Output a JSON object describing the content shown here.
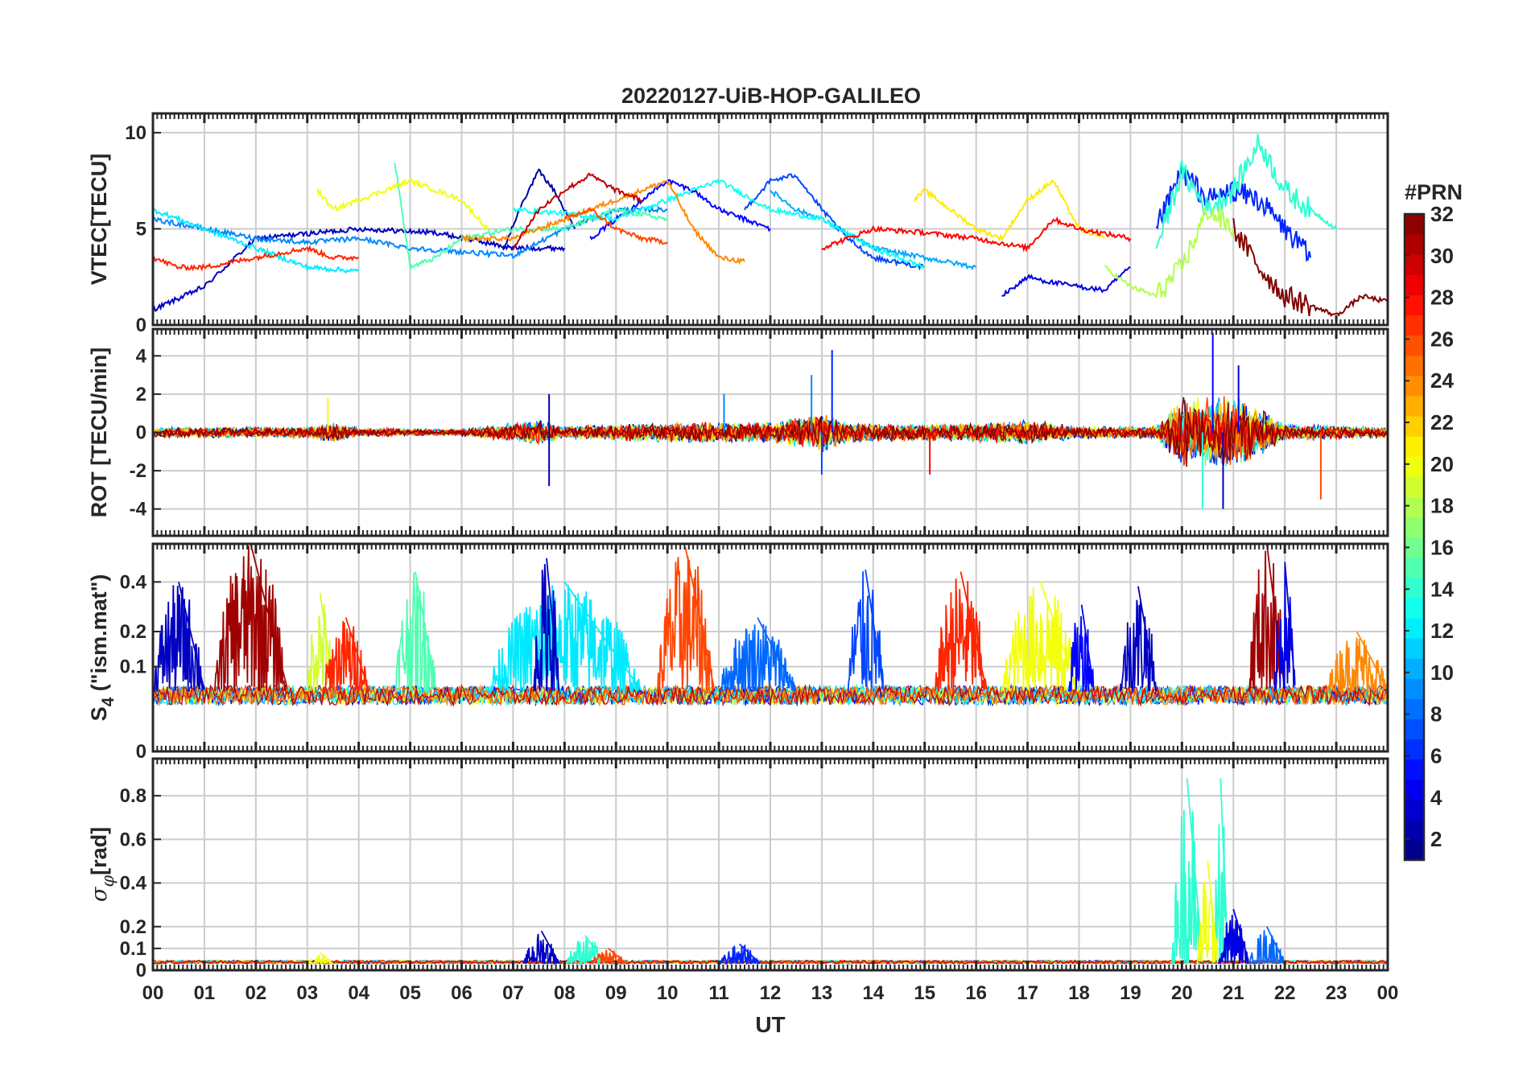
{
  "figure": {
    "title": "20220127-UiB-HOP-GALILEO",
    "xlabel": "UT",
    "colorbar": {
      "label": "#PRN",
      "range": [
        1,
        32
      ],
      "ticks": [
        "2",
        "4",
        "6",
        "8",
        "10",
        "12",
        "14",
        "16",
        "18",
        "20",
        "22",
        "24",
        "26",
        "28",
        "30",
        "32"
      ],
      "colormap": "jet"
    },
    "colors": {
      "axes": "#262626",
      "grid": "#cccccc",
      "background": "#ffffff"
    }
  },
  "chart_data": [
    {
      "type": "line",
      "panel": "vtec",
      "ylabel": "VTEC[TECU]",
      "xlim": [
        0,
        24
      ],
      "ylim": [
        0,
        11
      ],
      "yticks": [
        "0",
        "5",
        "10"
      ],
      "xtick_labels": [
        "00",
        "01",
        "02",
        "03",
        "04",
        "05",
        "06",
        "07",
        "08",
        "09",
        "10",
        "11",
        "12",
        "13",
        "14",
        "15",
        "16",
        "17",
        "18",
        "19",
        "20",
        "21",
        "22",
        "23",
        "00"
      ],
      "grid": true,
      "series": [
        {
          "prn": 2,
          "points": [
            [
              6.8,
              3.8
            ],
            [
              7.2,
              6.5
            ],
            [
              7.5,
              8.0
            ],
            [
              7.8,
              7.0
            ],
            [
              8.2,
              5.0
            ]
          ]
        },
        {
          "prn": 3,
          "points": [
            [
              0.0,
              0.8
            ],
            [
              0.6,
              1.5
            ],
            [
              1.0,
              2.0
            ],
            [
              2.0,
              4.5
            ],
            [
              4.0,
              5.0
            ],
            [
              5.5,
              4.8
            ],
            [
              7.0,
              4.0
            ],
            [
              8.0,
              4.0
            ]
          ]
        },
        {
          "prn": 5,
          "points": [
            [
              8.5,
              4.5
            ],
            [
              9.0,
              5.5
            ],
            [
              9.5,
              6.5
            ],
            [
              10.0,
              7.5
            ],
            [
              10.5,
              7.0
            ],
            [
              11.0,
              6.0
            ],
            [
              12.0,
              5.0
            ]
          ]
        },
        {
          "prn": 4,
          "points": [
            [
              16.5,
              1.5
            ],
            [
              17.0,
              2.5
            ],
            [
              17.5,
              2.2
            ],
            [
              18.5,
              1.8
            ],
            [
              19.0,
              3.0
            ]
          ]
        },
        {
          "prn": 6,
          "points": [
            [
              19.5,
              5.0
            ],
            [
              20.0,
              8.0
            ],
            [
              20.5,
              6.5
            ],
            [
              21.0,
              7.0
            ],
            [
              21.5,
              6.5
            ],
            [
              22.0,
              5.0
            ],
            [
              22.5,
              3.5
            ]
          ]
        },
        {
          "prn": 7,
          "points": [
            [
              11.5,
              6.0
            ],
            [
              12.0,
              7.5
            ],
            [
              12.5,
              7.8
            ],
            [
              13.0,
              6.0
            ],
            [
              13.5,
              4.5
            ],
            [
              14.0,
              3.5
            ],
            [
              15.0,
              3.0
            ]
          ]
        },
        {
          "prn": 9,
          "points": [
            [
              0.0,
              5.5
            ],
            [
              1.0,
              5.0
            ],
            [
              2.0,
              4.5
            ],
            [
              3.0,
              4.3
            ],
            [
              4.0,
              4.5
            ],
            [
              5.0,
              4.0
            ],
            [
              6.0,
              3.8
            ],
            [
              7.0,
              3.6
            ],
            [
              8.0,
              5.0
            ],
            [
              9.0,
              6.0
            ],
            [
              10.0,
              6.0
            ]
          ]
        },
        {
          "prn": 10,
          "points": [
            [
              12.0,
              7.0
            ],
            [
              12.5,
              6.0
            ],
            [
              13.0,
              5.5
            ],
            [
              14.0,
              4.0
            ],
            [
              15.0,
              3.5
            ],
            [
              16.0,
              3.0
            ]
          ]
        },
        {
          "prn": 12,
          "points": [
            [
              0.0,
              6.0
            ],
            [
              1.0,
              5.0
            ],
            [
              2.0,
              4.0
            ],
            [
              3.0,
              3.0
            ],
            [
              4.0,
              2.8
            ]
          ]
        },
        {
          "prn": 13,
          "points": [
            [
              7.0,
              6.0
            ],
            [
              8.0,
              5.8
            ],
            [
              9.0,
              5.5
            ],
            [
              10.0,
              6.5
            ],
            [
              11.0,
              7.5
            ],
            [
              12.0,
              6.0
            ],
            [
              13.0,
              5.5
            ],
            [
              14.0,
              4.0
            ],
            [
              15.0,
              3.0
            ]
          ]
        },
        {
          "prn": 14,
          "points": [
            [
              19.5,
              4.0
            ],
            [
              20.0,
              8.0
            ],
            [
              20.5,
              6.0
            ],
            [
              21.0,
              7.0
            ],
            [
              21.5,
              9.5
            ],
            [
              22.0,
              7.0
            ],
            [
              23.0,
              5.0
            ]
          ]
        },
        {
          "prn": 15,
          "points": [
            [
              4.7,
              8.5
            ],
            [
              5.0,
              3.0
            ],
            [
              5.5,
              3.5
            ],
            [
              6.0,
              4.5
            ],
            [
              7.0,
              5.0
            ],
            [
              8.0,
              5.0
            ],
            [
              9.0,
              6.0
            ],
            [
              10.0,
              5.5
            ]
          ]
        },
        {
          "prn": 18,
          "points": [
            [
              18.5,
              3.0
            ],
            [
              19.0,
              2.0
            ],
            [
              19.5,
              1.5
            ],
            [
              20.0,
              3.0
            ],
            [
              20.5,
              6.0
            ],
            [
              21.0,
              5.0
            ]
          ]
        },
        {
          "prn": 20,
          "points": [
            [
              3.2,
              7.0
            ],
            [
              3.5,
              6.0
            ],
            [
              4.0,
              6.5
            ],
            [
              4.5,
              7.0
            ],
            [
              5.0,
              7.5
            ],
            [
              6.0,
              6.5
            ],
            [
              6.5,
              5.0
            ]
          ]
        },
        {
          "prn": 21,
          "points": [
            [
              14.8,
              6.5
            ],
            [
              15.0,
              7.0
            ],
            [
              15.5,
              6.0
            ],
            [
              16.0,
              5.0
            ],
            [
              16.5,
              4.5
            ],
            [
              17.0,
              6.5
            ],
            [
              17.5,
              7.5
            ],
            [
              18.0,
              5.0
            ],
            [
              18.5,
              4.5
            ]
          ]
        },
        {
          "prn": 24,
          "points": [
            [
              6.0,
              4.5
            ],
            [
              7.0,
              4.5
            ],
            [
              8.0,
              5.5
            ],
            [
              9.0,
              6.5
            ],
            [
              9.5,
              7.0
            ],
            [
              10.0,
              7.5
            ],
            [
              10.5,
              5.0
            ],
            [
              11.0,
              3.5
            ],
            [
              11.5,
              3.3
            ]
          ]
        },
        {
          "prn": 26,
          "points": [
            [
              8.0,
              5.5
            ],
            [
              8.5,
              6.0
            ],
            [
              9.0,
              5.0
            ],
            [
              9.5,
              4.5
            ],
            [
              10.0,
              4.3
            ]
          ]
        },
        {
          "prn": 27,
          "points": [
            [
              0.0,
              3.5
            ],
            [
              0.5,
              3.0
            ],
            [
              1.0,
              3.0
            ],
            [
              2.0,
              3.5
            ],
            [
              3.0,
              4.0
            ],
            [
              3.5,
              3.5
            ],
            [
              4.0,
              3.5
            ]
          ]
        },
        {
          "prn": 28,
          "points": [
            [
              13.0,
              4.0
            ],
            [
              14.0,
              5.0
            ],
            [
              15.0,
              4.8
            ],
            [
              16.0,
              4.5
            ],
            [
              17.0,
              4.0
            ],
            [
              17.5,
              5.5
            ],
            [
              18.0,
              5.0
            ],
            [
              19.0,
              4.5
            ]
          ]
        },
        {
          "prn": 30,
          "points": [
            [
              7.0,
              4.0
            ],
            [
              7.5,
              6.0
            ],
            [
              8.0,
              7.0
            ],
            [
              8.5,
              7.8
            ],
            [
              9.0,
              7.0
            ],
            [
              9.5,
              6.5
            ]
          ]
        },
        {
          "prn": 32,
          "points": [
            [
              21.0,
              5.0
            ],
            [
              21.5,
              3.0
            ],
            [
              22.0,
              1.5
            ],
            [
              22.5,
              1.0
            ],
            [
              23.0,
              0.5
            ],
            [
              23.5,
              1.5
            ],
            [
              24.0,
              1.2
            ]
          ]
        }
      ]
    },
    {
      "type": "line",
      "panel": "rot",
      "ylabel": "ROT [TECU/min]",
      "xlim": [
        0,
        24
      ],
      "ylim": [
        -5.4,
        5.4
      ],
      "yticks": [
        "-4",
        "-2",
        "0",
        "2",
        "4"
      ],
      "grid": true,
      "noise_profile": [
        [
          0,
          0.5
        ],
        [
          3,
          0.5
        ],
        [
          3.5,
          1.0
        ],
        [
          4,
          0.4
        ],
        [
          6,
          0.3
        ],
        [
          7.5,
          1.2
        ],
        [
          8,
          0.6
        ],
        [
          10,
          1.0
        ],
        [
          12,
          1.0
        ],
        [
          13,
          2.0
        ],
        [
          13.5,
          1.0
        ],
        [
          15,
          0.8
        ],
        [
          17,
          1.2
        ],
        [
          18,
          0.6
        ],
        [
          19.5,
          0.6
        ],
        [
          20,
          3.5
        ],
        [
          21,
          3.5
        ],
        [
          21.5,
          2.5
        ],
        [
          22,
          0.8
        ],
        [
          24,
          0.5
        ]
      ],
      "spikes": [
        [
          7.7,
          -2.8,
          2
        ],
        [
          7.7,
          2.0,
          2
        ],
        [
          12.8,
          3.0,
          9
        ],
        [
          13.2,
          4.3,
          6
        ],
        [
          13.0,
          -2.2,
          7
        ],
        [
          15.1,
          -2.2,
          28
        ],
        [
          20.6,
          5.2,
          5
        ],
        [
          20.8,
          -4.0,
          3
        ],
        [
          20.4,
          -4.0,
          14
        ],
        [
          21.1,
          3.5,
          4
        ],
        [
          22.7,
          -3.5,
          26
        ],
        [
          3.4,
          1.8,
          20
        ],
        [
          11.1,
          2.0,
          9
        ]
      ],
      "prns": [
        2,
        3,
        5,
        7,
        9,
        10,
        12,
        14,
        16,
        18,
        20,
        22,
        24,
        26,
        28,
        30,
        32
      ]
    },
    {
      "type": "line",
      "panel": "s4",
      "ylabel": "S4 (\"ism.mat\")",
      "ylabel_main": "S",
      "ylabel_sub": "4",
      "ylabel_rest": " (\"ism.mat\")",
      "xlim": [
        0,
        24
      ],
      "ylim": [
        0,
        0.6
      ],
      "yticks": [
        "0",
        "0.1",
        "0.2",
        "0.4"
      ],
      "scale": "sqrt",
      "grid": true,
      "bursts": [
        {
          "prn": 3,
          "from": 0.0,
          "to": 1.0,
          "peak": 0.4
        },
        {
          "prn": 31,
          "from": 1.2,
          "to": 2.6,
          "peak": 0.6
        },
        {
          "prn": 19,
          "from": 3.0,
          "to": 3.5,
          "peak": 0.35
        },
        {
          "prn": 27,
          "from": 3.3,
          "to": 4.2,
          "peak": 0.25
        },
        {
          "prn": 15,
          "from": 4.7,
          "to": 5.5,
          "peak": 0.45
        },
        {
          "prn": 12,
          "from": 6.5,
          "to": 9.5,
          "peak": 0.4
        },
        {
          "prn": 3,
          "from": 7.4,
          "to": 7.9,
          "peak": 0.52
        },
        {
          "prn": 26,
          "from": 9.8,
          "to": 10.9,
          "peak": 0.58
        },
        {
          "prn": 8,
          "from": 11.0,
          "to": 12.5,
          "peak": 0.25
        },
        {
          "prn": 7,
          "from": 13.5,
          "to": 14.2,
          "peak": 0.46
        },
        {
          "prn": 27,
          "from": 15.2,
          "to": 16.2,
          "peak": 0.45
        },
        {
          "prn": 20,
          "from": 16.5,
          "to": 18.0,
          "peak": 0.4
        },
        {
          "prn": 5,
          "from": 17.8,
          "to": 18.3,
          "peak": 0.3
        },
        {
          "prn": 3,
          "from": 18.8,
          "to": 19.5,
          "peak": 0.38
        },
        {
          "prn": 31,
          "from": 21.3,
          "to": 22.0,
          "peak": 0.6
        },
        {
          "prn": 4,
          "from": 21.8,
          "to": 22.2,
          "peak": 0.5
        },
        {
          "prn": 24,
          "from": 22.8,
          "to": 24.0,
          "peak": 0.2
        }
      ]
    },
    {
      "type": "line",
      "panel": "sigma_phi",
      "ylabel": "σφ[rad]",
      "ylabel_main": "σ",
      "ylabel_sub": "φ",
      "ylabel_rest": "[rad]",
      "xlim": [
        0,
        24
      ],
      "ylim": [
        0,
        0.97
      ],
      "yticks": [
        "0",
        "0.1",
        "0.2",
        "0.4",
        "0.6",
        "0.8"
      ],
      "grid": true,
      "bursts": [
        {
          "prn": 14,
          "from": 19.8,
          "to": 20.4,
          "peak": 0.88
        },
        {
          "prn": 14,
          "from": 20.6,
          "to": 20.9,
          "peak": 0.88
        },
        {
          "prn": 20,
          "from": 20.3,
          "to": 20.7,
          "peak": 0.5
        },
        {
          "prn": 4,
          "from": 20.7,
          "to": 21.3,
          "peak": 0.28
        },
        {
          "prn": 8,
          "from": 21.3,
          "to": 22.0,
          "peak": 0.2
        },
        {
          "prn": 3,
          "from": 7.2,
          "to": 7.9,
          "peak": 0.18
        },
        {
          "prn": 14,
          "from": 8.0,
          "to": 8.8,
          "peak": 0.16
        },
        {
          "prn": 26,
          "from": 8.5,
          "to": 9.2,
          "peak": 0.1
        },
        {
          "prn": 6,
          "from": 11.0,
          "to": 11.8,
          "peak": 0.12
        },
        {
          "prn": 20,
          "from": 3.0,
          "to": 3.5,
          "peak": 0.08
        }
      ]
    }
  ]
}
